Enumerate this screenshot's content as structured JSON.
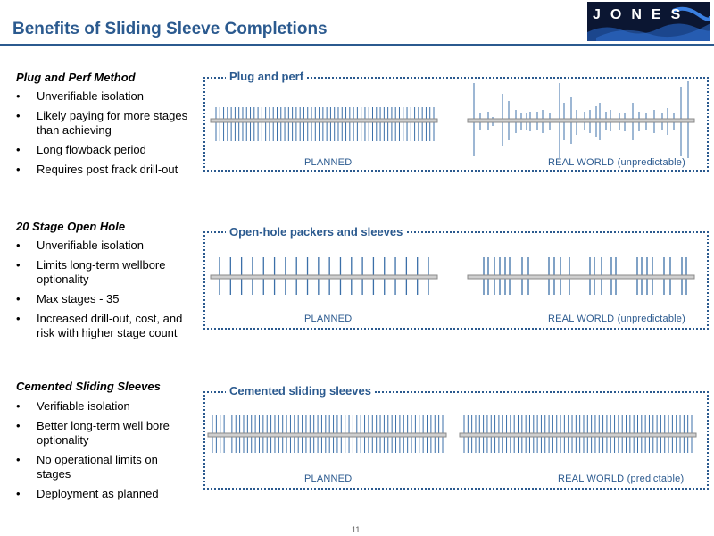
{
  "title": "Benefits of Sliding Sleeve Completions",
  "logo": {
    "text": "JONES",
    "bg_color": "#0b1632"
  },
  "sections": [
    {
      "heading": "Plug and Perf Method",
      "bullets": [
        "Unverifiable isolation",
        "Likely paying for more stages than achieving",
        "Long flowback period",
        "Requires post frack drill-out"
      ],
      "panel": {
        "title": "Plug and perf",
        "planned_label": "PLANNED",
        "real_label": "REAL WORLD (unpredictable)"
      }
    },
    {
      "heading": "20 Stage Open Hole",
      "bullets": [
        "Unverifiable isolation",
        "Limits long-term wellbore optionality",
        "Max stages - 35",
        "Increased drill-out, cost, and risk with higher stage count"
      ],
      "panel": {
        "title": "Open-hole packers and sleeves",
        "planned_label": "PLANNED",
        "real_label": "REAL WORLD (unpredictable)"
      }
    },
    {
      "heading": "Cemented Sliding Sleeves",
      "bullets": [
        "Verifiable isolation",
        "Better long-term well bore optionality",
        "No operational limits on stages",
        "Deployment as planned"
      ],
      "panel": {
        "title": "Cemented sliding sleeves",
        "planned_label": "PLANNED",
        "real_label": "REAL WORLD (predictable)"
      }
    }
  ],
  "page_number": "11",
  "colors": {
    "accent": "#2b5a8f",
    "fracture_line": "#3b6fa8",
    "pipe": "#8a8a8a"
  }
}
